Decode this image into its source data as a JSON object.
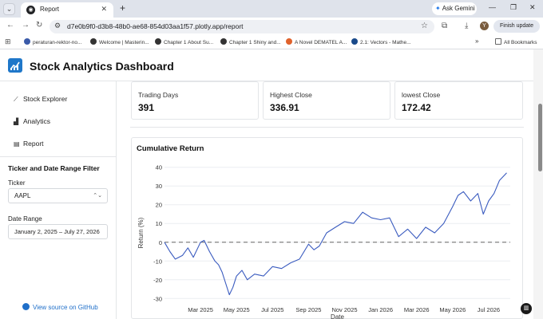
{
  "browser": {
    "tab_title": "Report",
    "tab_close": "✕",
    "new_tab": "+",
    "ask_gemini": "Ask Gemini",
    "url": "d7e0b9f0-d3b8-48b0-ae68-854d03aa1f57.plotly.app/report",
    "profile_initial": "Y",
    "finish_update": "Finish update",
    "bookmarks": [
      {
        "label": "peraturan-rektor-no...",
        "color": "#3b5ba9"
      },
      {
        "label": "Welcome | Masterin...",
        "color": "#333333"
      },
      {
        "label": "Chapter 1 About Su...",
        "color": "#333333"
      },
      {
        "label": "Chapter 1 Shiny and...",
        "color": "#333333"
      },
      {
        "label": "A Novel DEMATEL A...",
        "color": "#e0622c"
      },
      {
        "label": "2.1: Vectors - Mathe...",
        "color": "#1a4a8a"
      }
    ],
    "all_bookmarks": "All Bookmarks"
  },
  "app": {
    "title": "Stock Analytics Dashboard",
    "nav": [
      {
        "label": "Stock Explorer",
        "icon": "chart-line-icon"
      },
      {
        "label": "Analytics",
        "icon": "analytics-icon"
      },
      {
        "label": "Report",
        "icon": "report-icon"
      }
    ],
    "filter_title": "Ticker and Date Range Filter",
    "ticker_label": "Ticker",
    "ticker_value": "AAPL",
    "date_range_label": "Date Range",
    "date_range_value": "January 2, 2025 – July 27, 2026",
    "github_link": "View source on GitHub"
  },
  "cards": [
    {
      "label": "Trading Days",
      "value": "391"
    },
    {
      "label": "Highest Close",
      "value": "336.91"
    },
    {
      "label": "lowest Close",
      "value": "172.42"
    }
  ],
  "chart_data": {
    "type": "line",
    "title": "Cumulative Return",
    "xlabel": "Date",
    "ylabel": "Return (%)",
    "ylim": [
      -32,
      42
    ],
    "yticks": [
      -30,
      -20,
      -10,
      0,
      10,
      20,
      30,
      40
    ],
    "xticks": [
      "Mar 2025",
      "May 2025",
      "Jul 2025",
      "Sep 2025",
      "Nov 2025",
      "Jan 2026",
      "Mar 2026",
      "May 2026",
      "Jul 2026"
    ],
    "xlim_months": [
      0.0,
      19.2
    ],
    "reference_line": 0,
    "line_color": "#3a5bbf",
    "series": [
      {
        "x_months": [
          0.0,
          0.3,
          0.6,
          1.0,
          1.3,
          1.6,
          2.0,
          2.2,
          2.5,
          2.8,
          3.0,
          3.2,
          3.4,
          3.6,
          3.8,
          4.0,
          4.3,
          4.6,
          5.0,
          5.5,
          6.0,
          6.5,
          7.0,
          7.5,
          8.0,
          8.3,
          8.6,
          9.0,
          9.5,
          10.0,
          10.5,
          11.0,
          11.5,
          12.0,
          12.5,
          13.0,
          13.5,
          14.0,
          14.5,
          15.0,
          15.5,
          16.0,
          16.3,
          16.6,
          17.0,
          17.4,
          17.7,
          18.0,
          18.3,
          18.6,
          19.0
        ],
        "values": [
          0,
          -5,
          -9,
          -7,
          -3,
          -8,
          0,
          1,
          -5,
          -10,
          -12,
          -16,
          -22,
          -28,
          -24,
          -18,
          -15,
          -20,
          -17,
          -18,
          -13,
          -14,
          -11,
          -9,
          -1,
          -4,
          -2,
          5,
          8,
          11,
          10,
          16,
          13,
          12,
          13,
          3,
          7,
          2,
          8,
          5,
          10,
          19,
          25,
          27,
          22,
          26,
          15,
          22,
          26,
          33,
          37
        ]
      }
    ]
  }
}
